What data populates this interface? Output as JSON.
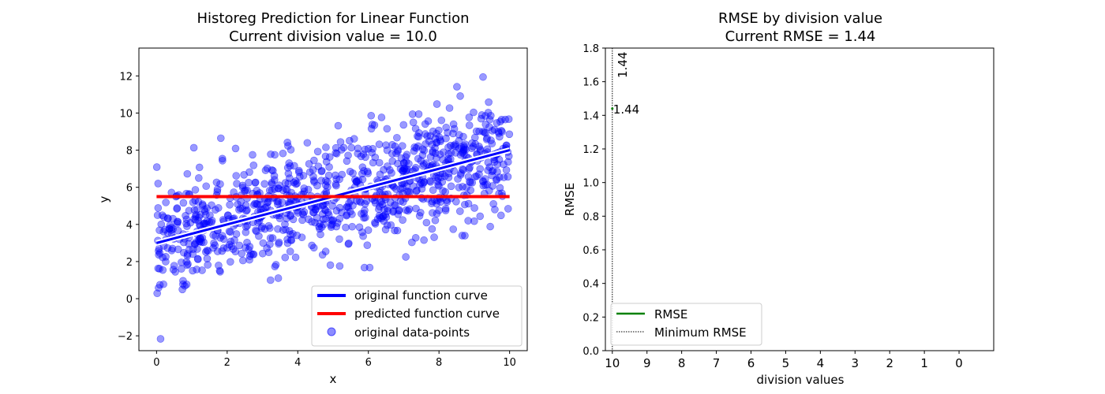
{
  "chart_data": [
    {
      "type": "scatter",
      "title": "Historeg Prediction for Linear Function",
      "subtitle": "Current division value = 10.0",
      "xlabel": "x",
      "ylabel": "y",
      "xlim": [
        -0.5,
        10.5
      ],
      "ylim": [
        -2.8,
        13.5
      ],
      "xticks": [
        0,
        2,
        4,
        6,
        8,
        10
      ],
      "yticks": [
        -2,
        0,
        2,
        4,
        6,
        8,
        10,
        12
      ],
      "grid": false,
      "legend_position": "lower right",
      "series": [
        {
          "name": "original function curve",
          "kind": "line",
          "color": "#0000ff",
          "x": [
            0,
            10
          ],
          "y": [
            3.0,
            8.0
          ]
        },
        {
          "name": "predicted function curve",
          "kind": "line",
          "color": "#ff0000",
          "x": [
            0,
            10
          ],
          "y": [
            5.5,
            5.5
          ]
        },
        {
          "name": "original data-points",
          "kind": "scatter",
          "color": "#0000ff",
          "count": 1000,
          "relation": "y = 0.5x + 3",
          "noise_sd": 1.5,
          "x_range": [
            0,
            10
          ]
        }
      ],
      "legend": [
        "original function curve",
        "predicted function curve",
        "original data-points"
      ]
    },
    {
      "type": "line",
      "title": "RMSE by division value",
      "subtitle": "Current RMSE = 1.44",
      "xlabel": "division values",
      "ylabel": "RMSE",
      "xticks": [
        10,
        9,
        8,
        7,
        6,
        5,
        4,
        3,
        2,
        1,
        0
      ],
      "xaxis_inverted": true,
      "xlim": [
        10.2,
        -1
      ],
      "ylim": [
        0,
        1.8
      ],
      "yticks": [
        0.0,
        0.2,
        0.4,
        0.6,
        0.8,
        1.0,
        1.2,
        1.4,
        1.6,
        1.8
      ],
      "grid": false,
      "legend_position": "lower left",
      "series": [
        {
          "name": "RMSE",
          "kind": "line",
          "color": "#008000",
          "x": [
            10
          ],
          "y": [
            1.44
          ]
        },
        {
          "name": "Minimum RMSE",
          "kind": "vline",
          "style": "dotted",
          "color": "#000000",
          "x": 10
        }
      ],
      "annotations": [
        {
          "text": "1.44",
          "x": 10,
          "y": 1.44,
          "color": "#008000"
        },
        {
          "text": "1.44",
          "x": 10,
          "y": 1.7,
          "rotation": -90,
          "color": "#000000"
        }
      ],
      "legend": [
        "RMSE",
        "Minimum RMSE"
      ]
    }
  ]
}
